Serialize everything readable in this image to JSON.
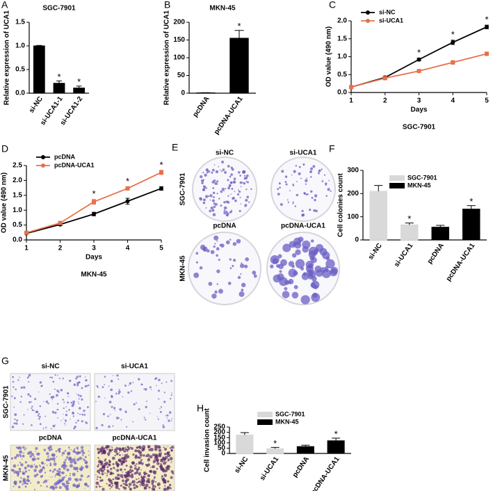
{
  "chart_data": [
    {
      "panel": "A",
      "type": "bar",
      "title": "SGC-7901",
      "y_label": "Relative expression of UCA1",
      "categories": [
        "si-NC",
        "si-UCA1-1",
        "si-UCA1-2"
      ],
      "values": [
        1.0,
        0.21,
        0.11
      ],
      "errors": [
        0.01,
        0.05,
        0.04
      ],
      "significance": [
        null,
        "*",
        "*"
      ],
      "color": "#000000",
      "ylim": [
        0,
        1.5
      ],
      "yticks": [
        {
          "value": 0,
          "label": "0.0"
        },
        0.5,
        {
          "value": 1,
          "label": "1.0"
        },
        1.5
      ]
    },
    {
      "panel": "B",
      "type": "bar",
      "title": "MKN-45",
      "y_label": "Relative expression of UCA1",
      "categories": [
        "pcDNA",
        "pcDNA-UCA1"
      ],
      "values": [
        1,
        155
      ],
      "errors": [
        0.5,
        22
      ],
      "significance": [
        null,
        "*"
      ],
      "color": "#000000",
      "ylim": [
        0,
        200
      ],
      "yticks": [
        0,
        50,
        100,
        150,
        200
      ]
    },
    {
      "panel": "C",
      "type": "line",
      "x_label": "Days",
      "y_label": "OD value (490 nm)",
      "caption": "SGC-7901",
      "x": [
        1,
        2,
        3,
        4,
        5
      ],
      "xlim": [
        1,
        5
      ],
      "xticks": [
        1,
        2,
        3,
        4,
        5
      ],
      "ylim": [
        0,
        2
      ],
      "yticks": [
        {
          "value": 0,
          "label": "0.0"
        },
        0.5,
        {
          "value": 1,
          "label": "1.0"
        },
        1.5,
        {
          "value": 2,
          "label": "2.0"
        }
      ],
      "series": [
        {
          "name": "si-NC",
          "color": "#000000",
          "values": [
            0.15,
            0.42,
            0.92,
            1.4,
            1.83
          ],
          "errors": [
            0.02,
            0.04,
            0.04,
            0.06,
            0.05
          ]
        },
        {
          "name": "si-UCA1",
          "color": "#e8704a",
          "values": [
            0.15,
            0.4,
            0.6,
            0.84,
            1.08
          ],
          "errors": [
            0.02,
            0.03,
            0.04,
            0.05,
            0.05
          ]
        }
      ],
      "significance": [
        null,
        null,
        "*",
        "*",
        "*"
      ]
    },
    {
      "panel": "D",
      "type": "line",
      "x_label": "Days",
      "y_label": "OD value (490 nm)",
      "caption": "MKN-45",
      "x": [
        1,
        2,
        3,
        4,
        5
      ],
      "xlim": [
        1,
        5
      ],
      "xticks": [
        1,
        2,
        3,
        4,
        5
      ],
      "ylim": [
        0,
        2.5
      ],
      "yticks": [
        {
          "value": 0,
          "label": "0.0"
        },
        0.5,
        {
          "value": 1,
          "label": "1.0"
        },
        1.5,
        {
          "value": 2,
          "label": "2.0"
        },
        2.5
      ],
      "series": [
        {
          "name": "pcDNA",
          "color": "#000000",
          "values": [
            0.22,
            0.52,
            0.87,
            1.3,
            1.73
          ],
          "errors": [
            0.02,
            0.04,
            0.06,
            0.1,
            0.06
          ]
        },
        {
          "name": "pcDNA-UCA1",
          "color": "#e8704a",
          "values": [
            0.24,
            0.57,
            1.28,
            1.73,
            2.27
          ],
          "errors": [
            0.02,
            0.05,
            0.08,
            0.06,
            0.07
          ]
        }
      ],
      "significance": [
        null,
        null,
        "*",
        "*",
        "*"
      ]
    },
    {
      "panel": "F",
      "type": "bar",
      "y_label": "Cell colonies count",
      "categories": [
        "si-NC",
        "si-UCA1",
        "pcDNA",
        "pcDNA-UCA1"
      ],
      "series": [
        {
          "name": "SGC-7901",
          "color": "#d9d9d9",
          "values": [
            210,
            65,
            null,
            null
          ],
          "errors": [
            25,
            8,
            null,
            null
          ]
        },
        {
          "name": "MKN-45",
          "color": "#000000",
          "values": [
            null,
            null,
            55,
            133
          ],
          "errors": [
            null,
            null,
            8,
            15
          ]
        }
      ],
      "significance": [
        null,
        "*",
        null,
        "*"
      ],
      "ylim": [
        0,
        300
      ],
      "yticks": [
        0,
        100,
        200,
        300
      ]
    },
    {
      "panel": "H",
      "type": "bar",
      "y_label": "Cell invasion count",
      "categories": [
        "si-NC",
        "si-UCA1",
        "pcDNA",
        "pcDNA-UCA1"
      ],
      "series": [
        {
          "name": "SGC-7901",
          "color": "#d9d9d9",
          "values": [
            175,
            45,
            null,
            null
          ],
          "errors": [
            22,
            12,
            null,
            null
          ]
        },
        {
          "name": "MKN-45",
          "color": "#000000",
          "values": [
            null,
            null,
            65,
            120
          ],
          "errors": [
            null,
            null,
            13,
            25
          ]
        }
      ],
      "significance": [
        null,
        "*",
        null,
        "*"
      ],
      "ylim": [
        0,
        250
      ],
      "yticks": [
        0,
        50,
        100,
        150,
        200,
        250
      ]
    }
  ],
  "image_panels": [
    {
      "panel": "E",
      "rows": [
        {
          "label": "SGC-7901",
          "cells": [
            "si-NC",
            "si-UCA1"
          ]
        },
        {
          "label": "MKN-45",
          "cells": [
            "pcDNA",
            "pcDNA-UCA1"
          ]
        }
      ]
    },
    {
      "panel": "G",
      "rows": [
        {
          "label": "SGC-7901",
          "cells": [
            "si-NC",
            "si-UCA1"
          ]
        },
        {
          "label": "MKN-45",
          "cells": [
            "pcDNA",
            "pcDNA-UCA1"
          ]
        }
      ]
    }
  ]
}
